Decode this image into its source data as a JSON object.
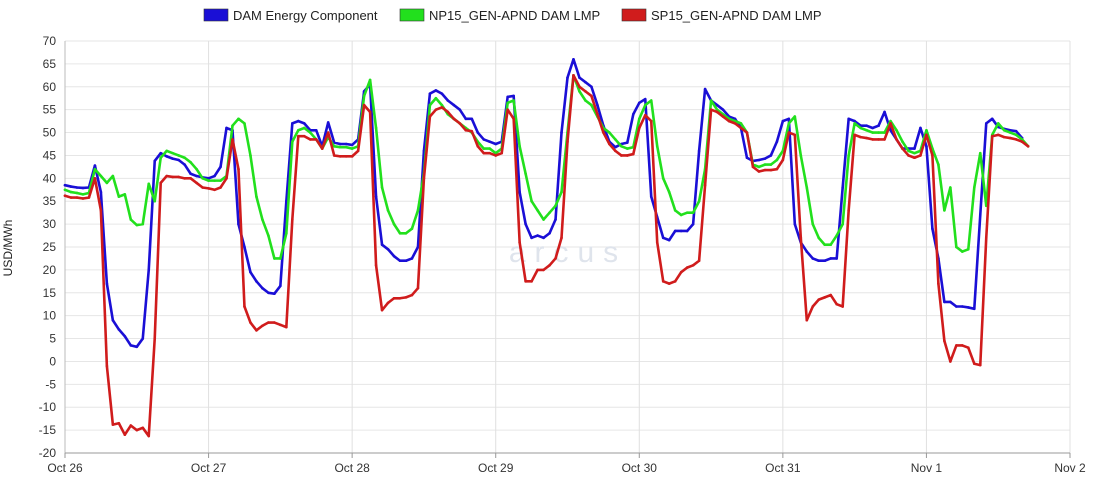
{
  "chart_data": {
    "type": "line",
    "title": "",
    "xlabel": "",
    "ylabel": "USD/MWh",
    "ylim": [
      -20,
      70
    ],
    "y_ticks": [
      70,
      65,
      60,
      55,
      50,
      45,
      40,
      35,
      30,
      25,
      20,
      15,
      10,
      5,
      0,
      -5,
      -10,
      -15,
      -20
    ],
    "x_ticks": [
      "Oct 26",
      "Oct 27",
      "Oct 28",
      "Oct 29",
      "Oct 30",
      "Oct 31",
      "Nov 1",
      "Nov 2"
    ],
    "grid": true,
    "legend_position": "top-center",
    "watermark": "arcus",
    "x_interval_hours": 1,
    "series": [
      {
        "name": "DAM Energy Component",
        "color": "#1a0fd6",
        "values": [
          38.5,
          38.2,
          38,
          37.9,
          38,
          42.8,
          37,
          17,
          9,
          7,
          5.5,
          3.5,
          3.2,
          5,
          20,
          43.8,
          45.5,
          44.8,
          44.3,
          44,
          43,
          41,
          40.5,
          40.2,
          40,
          40.5,
          42.5,
          51,
          50.5,
          30,
          25,
          19.5,
          17.5,
          16,
          15,
          14.8,
          16.5,
          35,
          52,
          52.5,
          52,
          50.5,
          50.5,
          47,
          52.2,
          47.8,
          47.5,
          47.5,
          47.3,
          48.5,
          59,
          60.5,
          36,
          25.5,
          24.5,
          23,
          22,
          22,
          22.5,
          25,
          46,
          58.5,
          59.2,
          58.5,
          57,
          56,
          55,
          53,
          53,
          50,
          48.5,
          48,
          47.5,
          48,
          57.8,
          58,
          37,
          30,
          27,
          27.5,
          27,
          28,
          31,
          50,
          62,
          66,
          62,
          61,
          60,
          56,
          51.5,
          48,
          46.8,
          47.5,
          47.8,
          54,
          56.5,
          57.3,
          36,
          31.5,
          27,
          26.5,
          28.5,
          28.5,
          28.5,
          30,
          46,
          59.5,
          57,
          56,
          55,
          53.5,
          53,
          51,
          44.5,
          43.8,
          44,
          44.3,
          45,
          48,
          52.5,
          53,
          30,
          26,
          24,
          22.5,
          22,
          22,
          22.5,
          22.5,
          38,
          53,
          52.5,
          51.5,
          51.5,
          51,
          51.5,
          54.5,
          50.5,
          48.5,
          46.5,
          46.5,
          46.5,
          51,
          47,
          29,
          22.5,
          13,
          13,
          12,
          12,
          11.8,
          11.5,
          32,
          52,
          53,
          51.2,
          50.8,
          50.5,
          50.3,
          48.8
        ]
      },
      {
        "name": "NP15_GEN-APND DAM LMP",
        "color": "#22e01d",
        "values": [
          37.5,
          37,
          36.8,
          36.5,
          36.8,
          42,
          40.5,
          39,
          40.5,
          36,
          36.5,
          31,
          29.8,
          30,
          38.8,
          35,
          44.5,
          46,
          45.5,
          45,
          44.5,
          43.5,
          42,
          40,
          39.5,
          39.5,
          39.5,
          40.5,
          51.5,
          53,
          52,
          45,
          36,
          31,
          27.5,
          22.5,
          22.5,
          28,
          48,
          50.5,
          51,
          50,
          48.5,
          46.5,
          49,
          47,
          46.8,
          46.8,
          46.5,
          47,
          58,
          61.5,
          51,
          38,
          33,
          30,
          28,
          28,
          29,
          33,
          41,
          56,
          57.5,
          56,
          54,
          53,
          52,
          51,
          50,
          48,
          46.5,
          46.5,
          45.5,
          46.5,
          56.5,
          57,
          47,
          41,
          35,
          33,
          31,
          32.5,
          34,
          37,
          50,
          62.5,
          59,
          57,
          56,
          53.5,
          51,
          50,
          48.5,
          47,
          46.5,
          46.8,
          53,
          56,
          57,
          47,
          40,
          37,
          33,
          32,
          32.5,
          32.5,
          35,
          42,
          57,
          55,
          54,
          53,
          52.5,
          52,
          50,
          43,
          42.5,
          43,
          43,
          44,
          46,
          52,
          53.5,
          45,
          38,
          30,
          27,
          25.5,
          25.5,
          27.5,
          30,
          45,
          52,
          51,
          50.5,
          50,
          50,
          50,
          52.5,
          50.5,
          48,
          46,
          45.5,
          46,
          50.5,
          46.5,
          43,
          33,
          38,
          25,
          24,
          24.5,
          38,
          45.5,
          34,
          49.5,
          52,
          50.5,
          50,
          49.5,
          48.5,
          47
        ]
      },
      {
        "name": "SP15_GEN-APND DAM LMP",
        "color": "#d01c1c",
        "values": [
          36.2,
          35.8,
          35.8,
          35.6,
          35.8,
          40,
          33,
          -1,
          -13.8,
          -13.5,
          -16,
          -14,
          -15,
          -14.5,
          -16.3,
          5,
          39,
          40.5,
          40.3,
          40.3,
          40,
          40,
          39,
          38,
          37.8,
          37.5,
          38,
          40,
          48.5,
          42,
          12,
          8.5,
          6.8,
          7.8,
          8.5,
          8.5,
          8,
          7.5,
          31,
          49.2,
          49.2,
          48.5,
          48.5,
          46.5,
          50,
          45,
          44.8,
          44.8,
          44.8,
          46,
          56,
          54.5,
          21,
          11.2,
          12.8,
          13.8,
          13.8,
          14,
          14.5,
          16,
          40,
          53.5,
          55,
          55.5,
          54.5,
          53,
          52,
          50.5,
          50.3,
          47,
          45.5,
          45.5,
          45,
          45.5,
          55,
          53,
          26,
          17.5,
          17.5,
          20,
          20,
          21,
          22.5,
          27,
          48,
          62.5,
          60,
          59,
          58,
          54,
          50,
          47.5,
          46,
          45,
          45,
          45.3,
          51,
          53.8,
          52.5,
          26,
          17.5,
          17,
          17.5,
          19.5,
          20.5,
          21,
          22,
          38.5,
          55,
          54.5,
          53.5,
          52.5,
          52,
          51,
          50,
          42.5,
          41.5,
          41.8,
          41.8,
          42,
          44,
          50,
          49.5,
          27,
          9,
          12,
          13.5,
          14,
          14.5,
          12.5,
          12,
          33,
          49.5,
          49,
          48.8,
          48.5,
          48.5,
          48.5,
          52,
          48.5,
          46.5,
          45,
          44.5,
          45,
          49.5,
          45,
          17,
          4.5,
          0,
          3.5,
          3.5,
          3,
          -0.5,
          -0.8,
          27,
          49.2,
          49.5,
          49,
          48.8,
          48.5,
          48,
          47
        ]
      }
    ]
  }
}
